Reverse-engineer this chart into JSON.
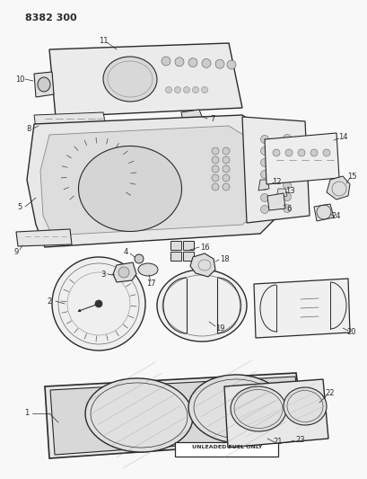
{
  "title": "8382 300",
  "background_color": "#f8f8f8",
  "line_color": "#2a2a2a",
  "fig_width": 4.1,
  "fig_height": 5.33,
  "dpi": 100
}
